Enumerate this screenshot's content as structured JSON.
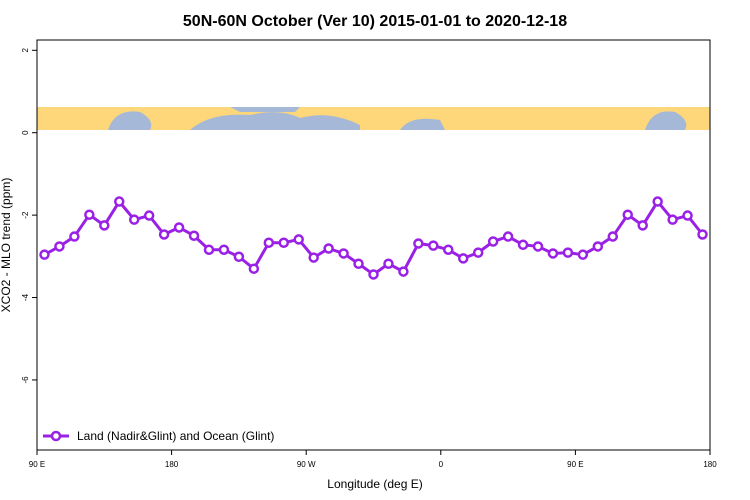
{
  "chart_data": {
    "type": "line",
    "title": "50N-60N October (Ver 10)   2015-01-01 to 2020-12-18",
    "x_label": "Longitude (deg E)",
    "y_label": "XCO2 - MLO trend (ppm)",
    "x": [
      95,
      105,
      115,
      125,
      135,
      145,
      155,
      165,
      175,
      185,
      195,
      205,
      215,
      225,
      235,
      245,
      255,
      265,
      275,
      285,
      295,
      305,
      315,
      325,
      335,
      345,
      355,
      365,
      375,
      385,
      395,
      405,
      415,
      425,
      435,
      445,
      455,
      465,
      475,
      485,
      495,
      505,
      515,
      525,
      535
    ],
    "series": [
      {
        "name": "Land (Nadir&Glint) and Ocean (Glint)",
        "color": "#9b20e6",
        "values": [
          -2.96,
          -2.76,
          -2.52,
          -1.99,
          -2.25,
          -1.67,
          -2.11,
          -2.01,
          -2.47,
          -2.3,
          -2.5,
          -2.84,
          -2.84,
          -3.01,
          -3.3,
          -2.67,
          -2.67,
          -2.59,
          -3.03,
          -2.81,
          -2.93,
          -3.18,
          -3.44,
          -3.18,
          -3.37,
          -2.69,
          -2.74,
          -2.84,
          -3.05,
          -2.91,
          -2.64,
          -2.52,
          -2.72,
          -2.76,
          -2.93,
          -2.91,
          -2.96,
          -2.76,
          -2.52,
          -1.99,
          -2.25,
          -1.67,
          -2.11,
          -2.01,
          -2.47
        ]
      }
    ],
    "xlim": [
      90,
      540
    ],
    "xticks": [
      {
        "value": 90,
        "label": "90 E"
      },
      {
        "value": 180,
        "label": "180"
      },
      {
        "value": 270,
        "label": "90 W"
      },
      {
        "value": 360,
        "label": "0"
      },
      {
        "value": 450,
        "label": "90 E"
      },
      {
        "value": 540,
        "label": "180"
      }
    ],
    "ylim": [
      -7.7,
      2.25
    ],
    "yticks": [
      -6,
      -4,
      -2,
      0,
      2
    ],
    "legend": "bottom-left"
  }
}
